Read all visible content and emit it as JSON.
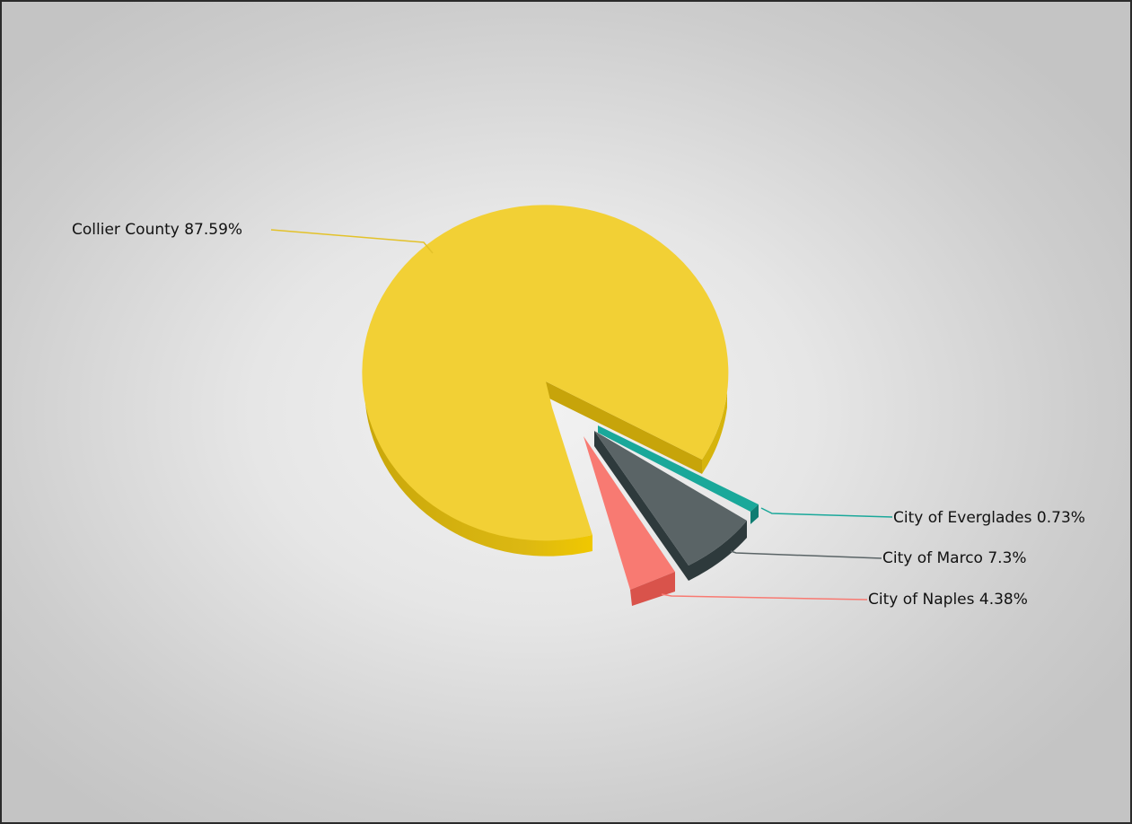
{
  "chart_data": {
    "type": "pie",
    "title": "",
    "legend": "none",
    "slices": [
      {
        "name": "Collier County",
        "value": 87.59,
        "label": "Collier County 87.59%",
        "color": "#f2d035",
        "side": "#d6b40d"
      },
      {
        "name": "City of Everglades",
        "value": 0.73,
        "label": "City of Everglades 0.73%",
        "color": "#1aa89a",
        "side": "#0f7d72"
      },
      {
        "name": "City of Marco",
        "value": 7.3,
        "label": "City of Marco  7.3%",
        "color": "#5a6466",
        "side": "#2e3a3c"
      },
      {
        "name": "City of Naples",
        "value": 4.38,
        "label": "City of Naples 4.38%",
        "color": "#f87a72",
        "side": "#d9534b"
      }
    ]
  }
}
